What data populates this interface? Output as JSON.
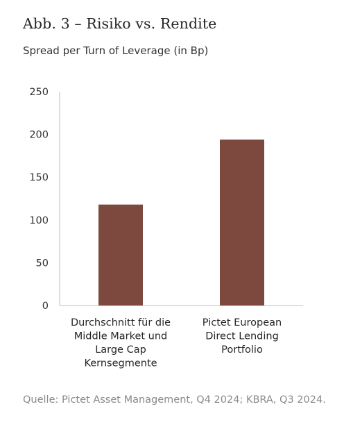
{
  "header": {
    "title": "Abb. 3 – Risiko vs. Rendite",
    "subtitle": "Spread per Turn of Leverage (in Bp)"
  },
  "chart_data": {
    "type": "bar",
    "categories": [
      [
        "Durchschnitt für die",
        "Middle Market und",
        "Large Cap",
        "Kernsegmente"
      ],
      [
        "Pictet European",
        "Direct Lending",
        "Portfolio"
      ]
    ],
    "values": [
      118,
      194
    ],
    "yticks": [
      0,
      50,
      100,
      150,
      200,
      250
    ],
    "ylim": [
      0,
      250
    ],
    "bar_color": "#7d483d",
    "axis_color": "#bfbfbf",
    "grid": false,
    "legend": "none"
  },
  "footer": {
    "source": "Quelle: Pictet Asset Management, Q4 2024; KBRA, Q3 2024."
  }
}
